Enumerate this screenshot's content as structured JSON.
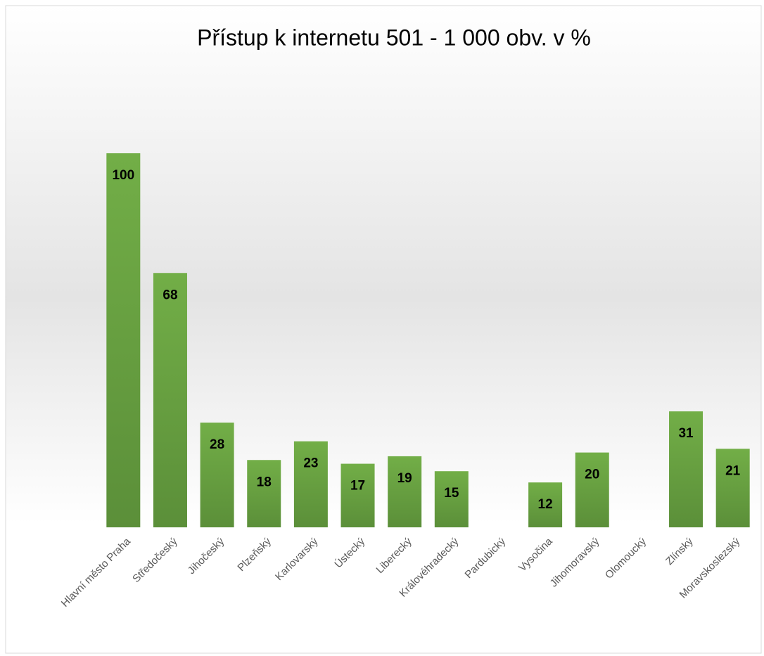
{
  "chart_data": {
    "type": "bar",
    "title": "Přístup k internetu 501 - 1 000 obv. v %",
    "categories": [
      "Hlavní město Praha",
      "Středočeský",
      "Jihočeský",
      "Plzeňský",
      "Karlovarský",
      "Ústecký",
      "Liberecký",
      "Královéhradecký",
      "Pardubický",
      "Vysočina",
      "Jihomoravský",
      "Olomoucký",
      "Zlínský",
      "Moravskoslezský"
    ],
    "values": [
      100,
      68,
      28,
      18,
      23,
      17,
      19,
      15,
      null,
      12,
      20,
      null,
      31,
      21
    ],
    "color": "#70ad47",
    "ylim": [
      0,
      100
    ]
  }
}
